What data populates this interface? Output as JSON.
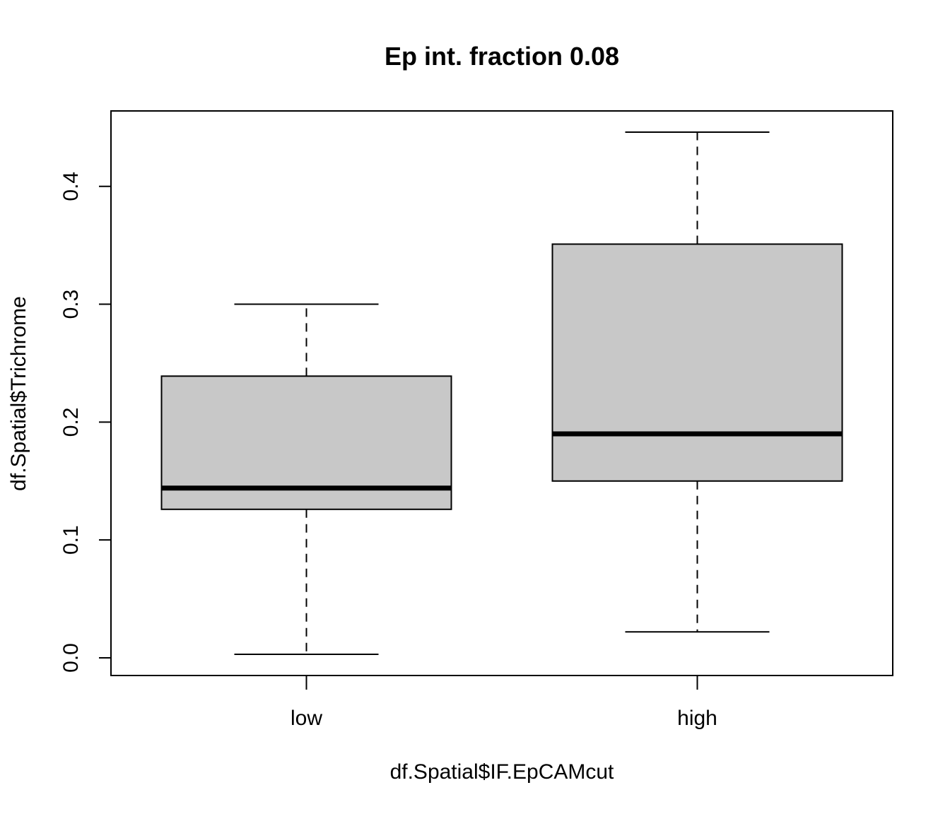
{
  "chart_data": {
    "type": "boxplot",
    "title": "Ep int. fraction 0.08",
    "xlabel": "df.Spatial$IF.EpCAMcut",
    "ylabel": "df.Spatial$Trichrome",
    "categories": [
      "low",
      "high"
    ],
    "boxes": [
      {
        "category": "low",
        "whisker_low": 0.003,
        "q1": 0.126,
        "median": 0.144,
        "q3": 0.239,
        "whisker_high": 0.3
      },
      {
        "category": "high",
        "whisker_low": 0.022,
        "q1": 0.15,
        "median": 0.19,
        "q3": 0.351,
        "whisker_high": 0.446
      }
    ],
    "yticks": [
      "0.0",
      "0.1",
      "0.2",
      "0.3",
      "0.4"
    ],
    "ylim": [
      -0.015,
      0.464
    ],
    "box_color": "#c8c8c8",
    "grid": false,
    "legend": "none"
  }
}
